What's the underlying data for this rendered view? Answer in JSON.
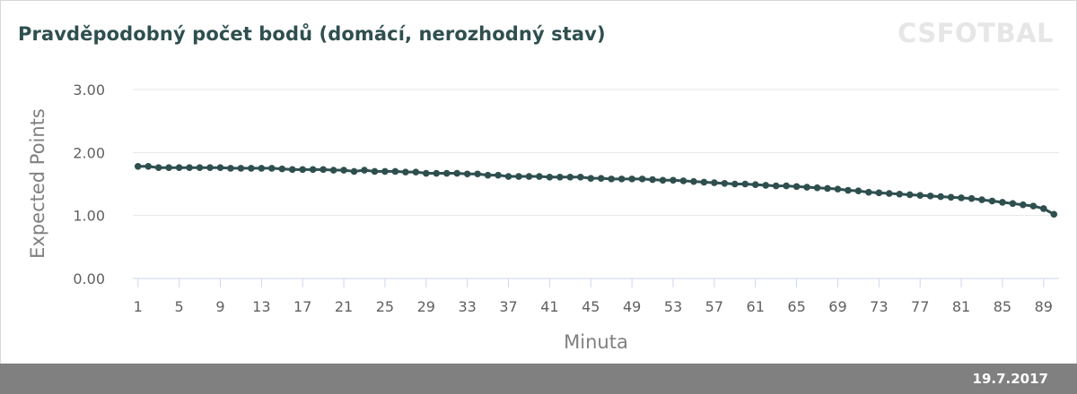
{
  "chart_data": {
    "type": "line",
    "title": "Pravděpodobný počet bodů (domácí, nerozhodný stav)",
    "xlabel": "Minuta",
    "ylabel": "Expected Points",
    "ylim": [
      0,
      3
    ],
    "yticks": [
      "0.00",
      "1.00",
      "2.00",
      "3.00"
    ],
    "xlim": [
      1,
      90
    ],
    "xticks": [
      1,
      5,
      9,
      13,
      17,
      21,
      25,
      29,
      33,
      37,
      41,
      45,
      49,
      53,
      57,
      61,
      65,
      69,
      73,
      77,
      81,
      85,
      89
    ],
    "grid": true,
    "legend": false,
    "series_color": "#2f4f4f",
    "x": [
      1,
      2,
      3,
      4,
      5,
      6,
      7,
      8,
      9,
      10,
      11,
      12,
      13,
      14,
      15,
      16,
      17,
      18,
      19,
      20,
      21,
      22,
      23,
      24,
      25,
      26,
      27,
      28,
      29,
      30,
      31,
      32,
      33,
      34,
      35,
      36,
      37,
      38,
      39,
      40,
      41,
      42,
      43,
      44,
      45,
      46,
      47,
      48,
      49,
      50,
      51,
      52,
      53,
      54,
      55,
      56,
      57,
      58,
      59,
      60,
      61,
      62,
      63,
      64,
      65,
      66,
      67,
      68,
      69,
      70,
      71,
      72,
      73,
      74,
      75,
      76,
      77,
      78,
      79,
      80,
      81,
      82,
      83,
      84,
      85,
      86,
      87,
      88,
      89,
      90
    ],
    "series": [
      {
        "values": [
          1.78,
          1.78,
          1.76,
          1.76,
          1.76,
          1.76,
          1.76,
          1.76,
          1.76,
          1.75,
          1.75,
          1.75,
          1.75,
          1.75,
          1.74,
          1.73,
          1.73,
          1.73,
          1.73,
          1.72,
          1.72,
          1.7,
          1.72,
          1.7,
          1.7,
          1.7,
          1.69,
          1.69,
          1.67,
          1.67,
          1.67,
          1.67,
          1.66,
          1.66,
          1.64,
          1.64,
          1.62,
          1.62,
          1.62,
          1.62,
          1.61,
          1.61,
          1.61,
          1.61,
          1.59,
          1.59,
          1.58,
          1.58,
          1.58,
          1.58,
          1.57,
          1.56,
          1.56,
          1.55,
          1.54,
          1.53,
          1.52,
          1.51,
          1.5,
          1.5,
          1.49,
          1.48,
          1.47,
          1.47,
          1.46,
          1.45,
          1.44,
          1.43,
          1.42,
          1.4,
          1.39,
          1.37,
          1.36,
          1.35,
          1.34,
          1.33,
          1.32,
          1.31,
          1.3,
          1.29,
          1.28,
          1.27,
          1.25,
          1.23,
          1.21,
          1.19,
          1.17,
          1.15,
          1.11,
          1.02
        ]
      }
    ]
  },
  "watermark": "CSFOTBAL",
  "footer": {
    "date": "19.7.2017"
  }
}
